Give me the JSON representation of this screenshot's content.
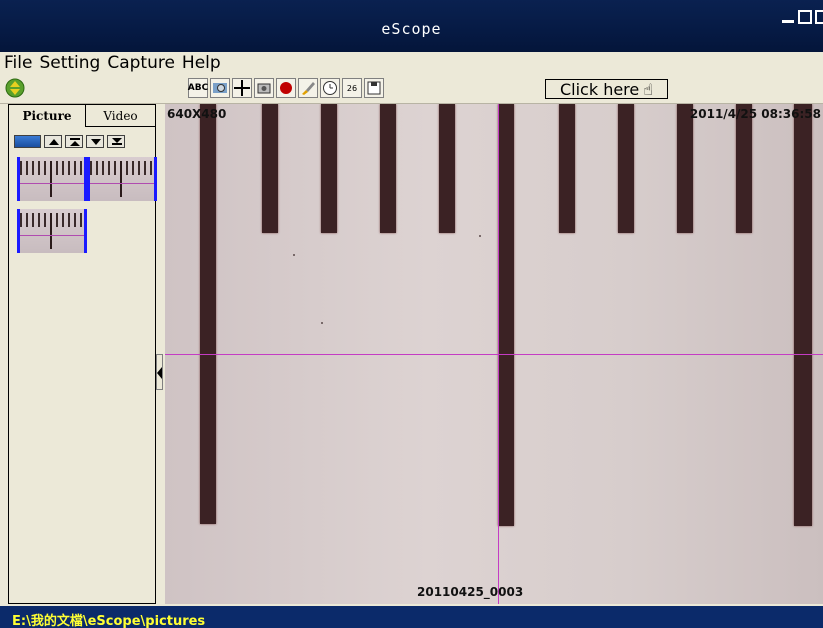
{
  "window": {
    "title": "eScope"
  },
  "menu": [
    "File",
    "Setting",
    "Capture",
    "Help"
  ],
  "toolbar": {
    "nav_icon": "green-updown-arrows-icon",
    "tools": [
      {
        "name": "text-tool-icon",
        "label": "ABC"
      },
      {
        "name": "snapshot-tool-icon",
        "label": ""
      },
      {
        "name": "crosshair-tool-icon",
        "label": ""
      },
      {
        "name": "camera-tool-icon",
        "label": ""
      },
      {
        "name": "record-tool-icon",
        "label": ""
      },
      {
        "name": "paint-tool-icon",
        "label": ""
      },
      {
        "name": "clock-tool-icon",
        "label": ""
      },
      {
        "name": "calendar-tool-icon",
        "label": "26"
      },
      {
        "name": "save-tool-icon",
        "label": ""
      }
    ],
    "click_here_label": "Click here"
  },
  "sidebar": {
    "tabs": [
      {
        "label": "Picture",
        "active": true
      },
      {
        "label": "Video",
        "active": false
      }
    ],
    "thumbnails": 3
  },
  "preview": {
    "resolution": "640X480",
    "timestamp": "2011/4/25 08:36:58",
    "filename": "20110425_0003"
  },
  "status": {
    "path": "E:\\我的文檔\\eScope\\pictures"
  },
  "colors": {
    "titlebar": "#061a44",
    "statusbar": "#0b2a6a",
    "path_text": "#ffff33",
    "crosshair": "#c43cc4"
  }
}
